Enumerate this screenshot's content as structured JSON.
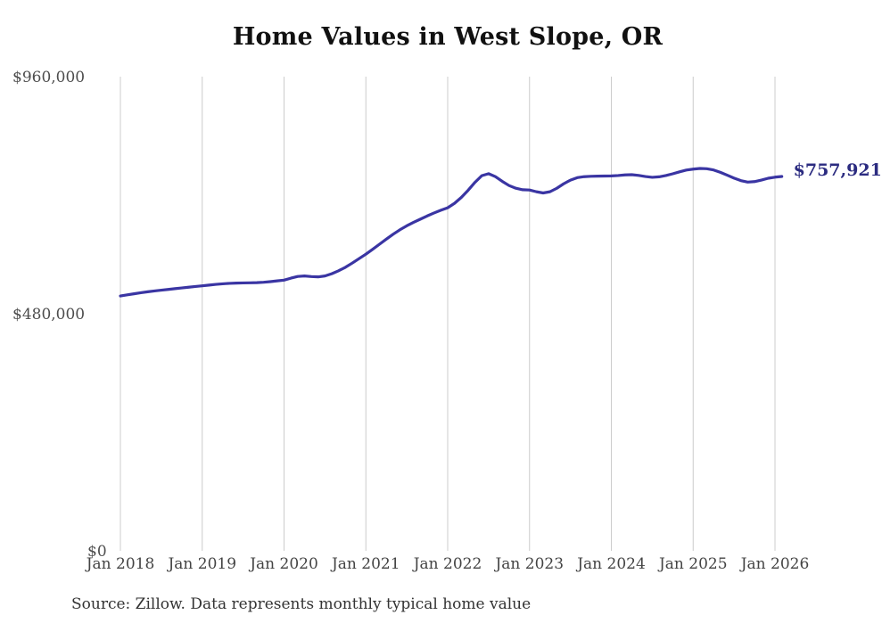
{
  "page": {
    "background": "#ffffff"
  },
  "chart_data": {
    "type": "line",
    "title": "Home Values in West Slope, OR",
    "source_note": "Source: Zillow. Data represents monthly typical home value",
    "end_label": "$757,921",
    "end_value": 757921,
    "ylim": [
      0,
      960000
    ],
    "grid": "vertical-only",
    "legend": "none",
    "colors": {
      "line": "#3a35a3",
      "end_label": "#2b2b80",
      "gridline": "#cccccc"
    },
    "x_unit": "month",
    "x_start": "Jan 2018",
    "x_end": "Feb 2026",
    "x_axis": {
      "ticks": [
        {
          "month_index": 0,
          "label": "Jan 2018"
        },
        {
          "month_index": 12,
          "label": "Jan 2019"
        },
        {
          "month_index": 24,
          "label": "Jan 2020"
        },
        {
          "month_index": 36,
          "label": "Jan 2021"
        },
        {
          "month_index": 48,
          "label": "Jan 2022"
        },
        {
          "month_index": 60,
          "label": "Jan 2023"
        },
        {
          "month_index": 72,
          "label": "Jan 2024"
        },
        {
          "month_index": 84,
          "label": "Jan 2025"
        },
        {
          "month_index": 96,
          "label": "Jan 2026"
        }
      ]
    },
    "y_axis": {
      "ticks": [
        {
          "value": 960000,
          "label": "$960,000"
        },
        {
          "value": 480000,
          "label": "$480,000"
        },
        {
          "value": 0,
          "label": "$0"
        }
      ]
    },
    "series": [
      {
        "name": "Monthly typical home value",
        "color": "#3a35a3",
        "values": [
          516000,
          518200,
          520400,
          522500,
          524400,
          526100,
          527700,
          529200,
          530700,
          532200,
          533700,
          535100,
          536500,
          538000,
          539400,
          540600,
          541500,
          542100,
          542400,
          542600,
          543000,
          543700,
          545000,
          546500,
          548000,
          552000,
          555500,
          556500,
          555200,
          554600,
          556500,
          561000,
          567000,
          574000,
          582500,
          591500,
          600500,
          610500,
          620800,
          631000,
          641000,
          650000,
          658000,
          665000,
          671500,
          678000,
          684000,
          689500,
          694500,
          703500,
          715500,
          730000,
          746000,
          759500,
          763500,
          757500,
          748000,
          739500,
          734000,
          731000,
          730500,
          727000,
          724500,
          727000,
          734000,
          743000,
          750500,
          755500,
          757500,
          758200,
          758600,
          758800,
          759000,
          759800,
          761000,
          761500,
          760000,
          757800,
          756200,
          757200,
          759800,
          763300,
          767300,
          770800,
          772800,
          774100,
          773600,
          771000,
          766300,
          760500,
          754500,
          749500,
          746500,
          747500,
          750500,
          754300,
          756500,
          757921
        ]
      }
    ]
  }
}
